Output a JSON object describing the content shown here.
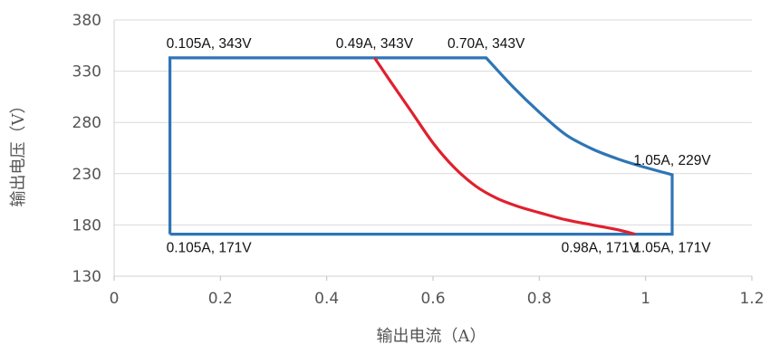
{
  "chart_data": {
    "type": "line",
    "title": "",
    "xlabel": "输出电流（A）",
    "ylabel": "输出电压（V）",
    "xlim": [
      0,
      1.2
    ],
    "ylim": [
      130,
      380
    ],
    "x_ticks": [
      "0",
      "0.2",
      "0.4",
      "0.6",
      "0.8",
      "1",
      "1.2"
    ],
    "y_ticks": [
      "130",
      "180",
      "230",
      "280",
      "330",
      "380"
    ],
    "x_tick_values": [
      0,
      0.2,
      0.4,
      0.6,
      0.8,
      1.0,
      1.2
    ],
    "y_tick_values": [
      130,
      180,
      230,
      280,
      330,
      380
    ],
    "grid": "horizontal",
    "series": [
      {
        "color": "#2e75b6",
        "points": [
          {
            "x": 0.105,
            "y": 171
          },
          {
            "x": 0.105,
            "y": 343
          },
          {
            "x": 0.7,
            "y": 343
          },
          {
            "x": 0.75,
            "y": 315
          },
          {
            "x": 0.8,
            "y": 290
          },
          {
            "x": 0.85,
            "y": 268
          },
          {
            "x": 0.9,
            "y": 254
          },
          {
            "x": 0.95,
            "y": 244
          },
          {
            "x": 1.0,
            "y": 236
          },
          {
            "x": 1.05,
            "y": 229
          },
          {
            "x": 1.05,
            "y": 171
          },
          {
            "x": 0.105,
            "y": 171
          }
        ]
      },
      {
        "color": "#e0202e",
        "points": [
          {
            "x": 0.49,
            "y": 343
          },
          {
            "x": 0.52,
            "y": 320
          },
          {
            "x": 0.56,
            "y": 290
          },
          {
            "x": 0.6,
            "y": 260
          },
          {
            "x": 0.64,
            "y": 236
          },
          {
            "x": 0.68,
            "y": 218
          },
          {
            "x": 0.72,
            "y": 206
          },
          {
            "x": 0.76,
            "y": 198
          },
          {
            "x": 0.8,
            "y": 192
          },
          {
            "x": 0.85,
            "y": 185
          },
          {
            "x": 0.9,
            "y": 180
          },
          {
            "x": 0.95,
            "y": 175
          },
          {
            "x": 0.98,
            "y": 171
          }
        ]
      }
    ],
    "annotations": [
      {
        "text": "0.105A, 343V",
        "x": 0.105,
        "y": 343,
        "anchor": "start",
        "place": "above"
      },
      {
        "text": "0.49A, 343V",
        "x": 0.49,
        "y": 343,
        "anchor": "middle",
        "place": "above"
      },
      {
        "text": "0.70A, 343V",
        "x": 0.7,
        "y": 343,
        "anchor": "middle",
        "place": "above"
      },
      {
        "text": "1.05A, 229V",
        "x": 1.05,
        "y": 229,
        "anchor": "middle",
        "place": "above"
      },
      {
        "text": "0.105A, 171V",
        "x": 0.105,
        "y": 171,
        "anchor": "start",
        "place": "below"
      },
      {
        "text": "0.98A, 171V",
        "x": 0.98,
        "y": 171,
        "anchor": "end",
        "place": "below"
      },
      {
        "text": "1.05A, 171V",
        "x": 1.05,
        "y": 171,
        "anchor": "middle",
        "place": "below"
      }
    ]
  }
}
